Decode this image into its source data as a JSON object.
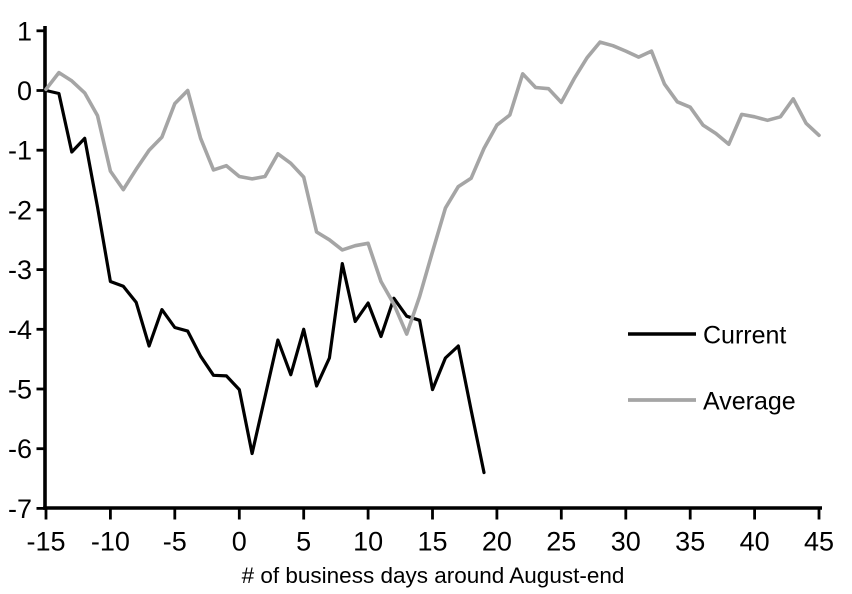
{
  "chart_data": {
    "type": "line",
    "title": "",
    "xlabel": "# of business days around August-end",
    "ylabel": "",
    "xlim": [
      -15,
      45
    ],
    "ylim": [
      -7,
      1
    ],
    "x_ticks": [
      -15,
      -10,
      -5,
      0,
      5,
      10,
      15,
      20,
      25,
      30,
      35,
      40,
      45
    ],
    "y_ticks": [
      1,
      0,
      -1,
      -2,
      -3,
      -4,
      -5,
      -6,
      -7
    ],
    "grid": false,
    "background_color": "#ffffff",
    "axis_color": "#000000",
    "legend_position": "right-center",
    "series": [
      {
        "name": "Current",
        "color": "#000000",
        "stroke_width": 3.2,
        "x": [
          -15,
          -14,
          -13,
          -12,
          -11,
          -10,
          -9,
          -8,
          -7,
          -6,
          -5,
          -4,
          -3,
          -2,
          -1,
          0,
          1,
          2,
          3,
          4,
          5,
          6,
          7,
          8,
          9,
          10,
          11,
          12,
          13,
          14,
          15,
          16,
          17,
          18,
          19
        ],
        "values": [
          0,
          -0.05,
          -1.03,
          -0.8,
          -1.95,
          -3.2,
          -3.28,
          -3.55,
          -4.28,
          -3.67,
          -3.97,
          -4.03,
          -4.45,
          -4.77,
          -4.78,
          -5.01,
          -6.08,
          -5.13,
          -4.18,
          -4.76,
          -4.0,
          -4.95,
          -4.48,
          -2.9,
          -3.87,
          -3.56,
          -4.12,
          -3.48,
          -3.78,
          -3.85,
          -5.01,
          -4.48,
          -4.28,
          -5.35,
          -6.4
        ]
      },
      {
        "name": "Average",
        "color": "#a5a5a5",
        "stroke_width": 3.6,
        "x": [
          -15,
          -14,
          -13,
          -12,
          -11,
          -10,
          -9,
          -8,
          -7,
          -6,
          -5,
          -4,
          -3,
          -2,
          -1,
          0,
          1,
          2,
          3,
          4,
          5,
          6,
          7,
          8,
          9,
          10,
          11,
          12,
          13,
          14,
          15,
          16,
          17,
          18,
          19,
          20,
          21,
          22,
          23,
          24,
          25,
          26,
          27,
          28,
          29,
          30,
          31,
          32,
          33,
          34,
          35,
          36,
          37,
          38,
          39,
          40,
          41,
          42,
          43,
          44,
          45
        ],
        "values": [
          0.02,
          0.3,
          0.16,
          -0.04,
          -0.42,
          -1.35,
          -1.66,
          -1.32,
          -1.0,
          -0.78,
          -0.22,
          0.0,
          -0.8,
          -1.33,
          -1.26,
          -1.44,
          -1.48,
          -1.44,
          -1.06,
          -1.22,
          -1.45,
          -2.37,
          -2.5,
          -2.67,
          -2.6,
          -2.56,
          -3.2,
          -3.58,
          -4.08,
          -3.45,
          -2.7,
          -1.97,
          -1.61,
          -1.47,
          -0.97,
          -0.58,
          -0.41,
          0.28,
          0.05,
          0.03,
          -0.2,
          0.2,
          0.55,
          0.81,
          0.75,
          0.66,
          0.56,
          0.66,
          0.11,
          -0.19,
          -0.28,
          -0.58,
          -0.72,
          -0.9,
          -0.4,
          -0.44,
          -0.5,
          -0.44,
          -0.14,
          -0.55,
          -0.75
        ]
      }
    ]
  }
}
